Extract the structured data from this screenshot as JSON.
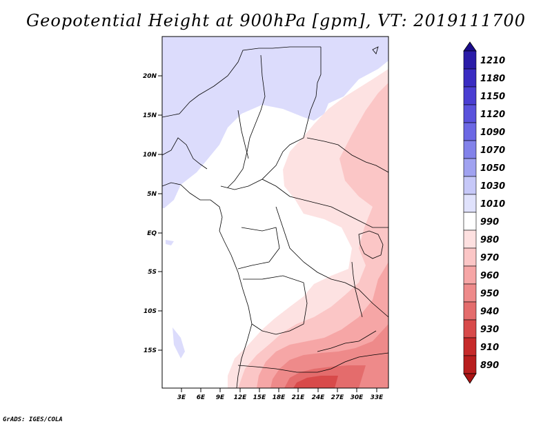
{
  "title": "Geopotential Height at 900hPa [gpm], VT: 2019111700",
  "footer": "GrADS: IGES/COLA",
  "map": {
    "lat_labels": [
      "20N",
      "15N",
      "10N",
      "5N",
      "EQ",
      "5S",
      "10S",
      "15S"
    ],
    "lon_labels": [
      "3E",
      "6E",
      "9E",
      "12E",
      "15E",
      "18E",
      "21E",
      "24E",
      "27E",
      "30E",
      "33E"
    ]
  },
  "colorbar": {
    "levels": [
      "1210",
      "1180",
      "1150",
      "1120",
      "1090",
      "1070",
      "1050",
      "1030",
      "1010",
      "990",
      "980",
      "970",
      "960",
      "950",
      "940",
      "930",
      "910",
      "890"
    ],
    "colors": [
      "#1a0c8a",
      "#2a1ca8",
      "#3a2cc2",
      "#4a3ed2",
      "#5a52dc",
      "#6c68e4",
      "#8282ea",
      "#a0a2f0",
      "#c6c8f8",
      "#e0e2fc",
      "#ffffff",
      "#fde0e0",
      "#fbc6c6",
      "#f6a6a6",
      "#ee8a8a",
      "#e46c6c",
      "#d84a4a",
      "#c62a2a",
      "#aa1414"
    ]
  }
}
